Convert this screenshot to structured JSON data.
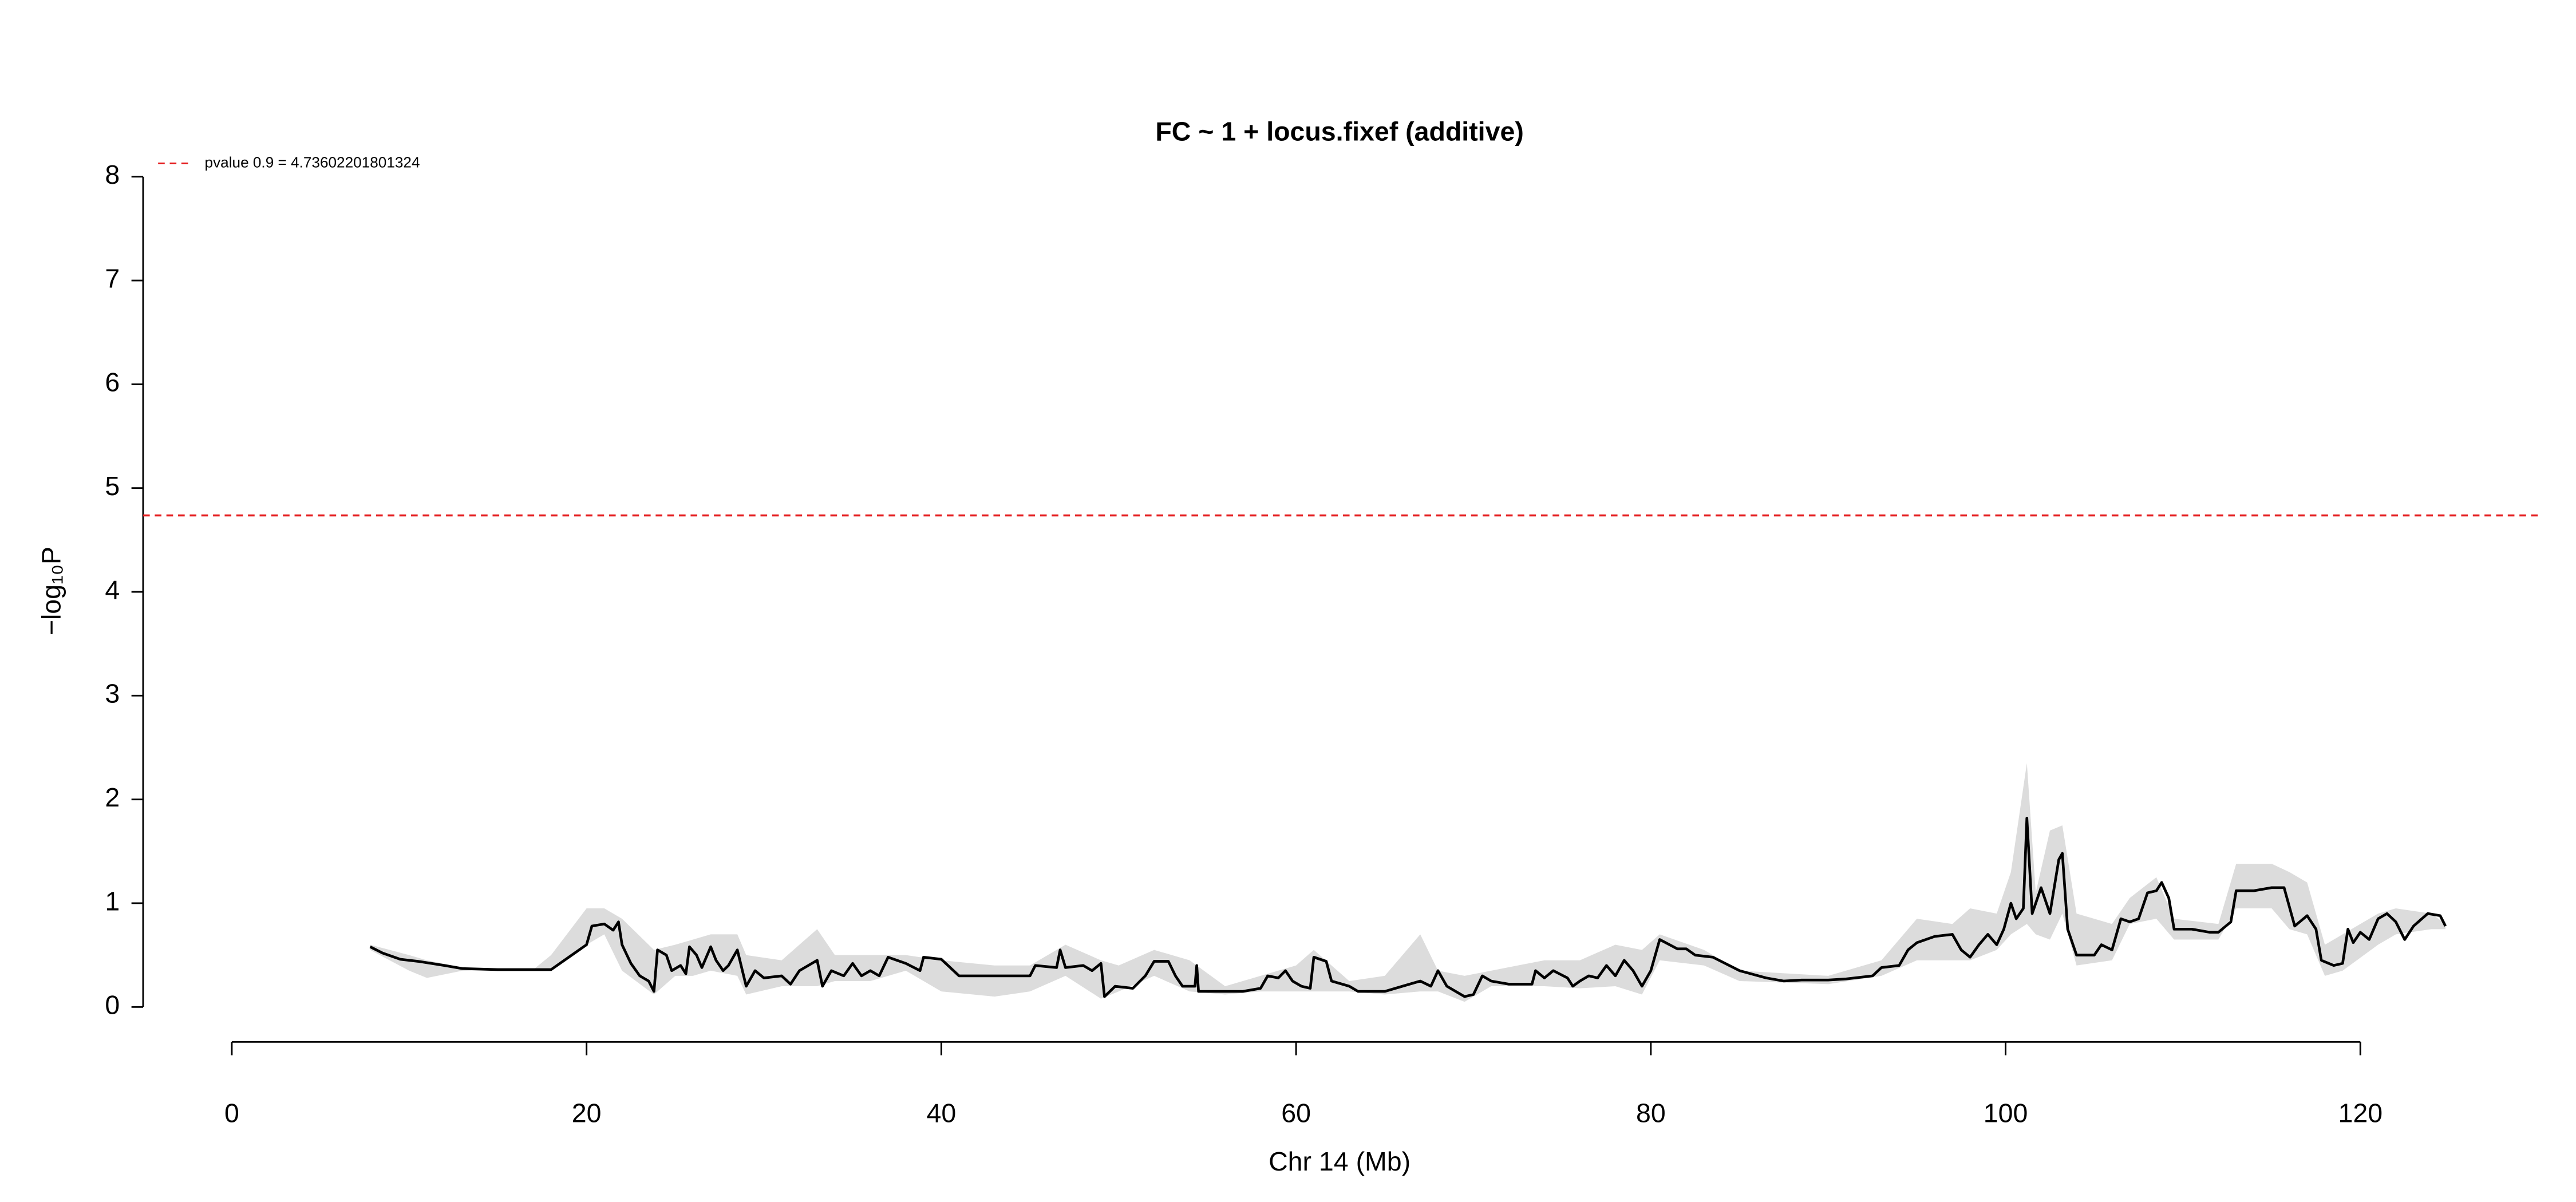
{
  "chart_data": {
    "type": "line",
    "title": "FC ~ 1 + locus.fixef (additive)",
    "xlabel": "Chr 14 (Mb)",
    "ylabel": "−log₁₀P",
    "xlim": [
      -5,
      130
    ],
    "ylim": [
      0,
      8
    ],
    "xticks": [
      0,
      20,
      40,
      60,
      80,
      100,
      120
    ],
    "yticks": [
      0,
      1,
      2,
      3,
      4,
      5,
      6,
      7,
      8
    ],
    "color": "#000000",
    "hline": {
      "value": 4.73602201801324,
      "label": "pvalue 0.9 = 4.73602201801324",
      "color": "#e41a1c"
    },
    "x": [
      7.8,
      8.5,
      9.5,
      10.5,
      12,
      13,
      15,
      18,
      20,
      20.3,
      21,
      21.5,
      21.8,
      22,
      22.5,
      23,
      23.5,
      23.8,
      24,
      24.5,
      24.8,
      25.3,
      25.6,
      25.8,
      26.2,
      26.5,
      27,
      27.3,
      27.7,
      28,
      28.5,
      29,
      29.5,
      30,
      31,
      31.5,
      32,
      33,
      33.3,
      33.8,
      34.5,
      35,
      35.5,
      36,
      36.5,
      37,
      38,
      38.8,
      39,
      40,
      41,
      45,
      45.3,
      46.5,
      46.7,
      47,
      48,
      48.5,
      49,
      49.2,
      49.8,
      50.8,
      51.5,
      52,
      52.8,
      53.2,
      53.6,
      54.3,
      54.4,
      54.5,
      56,
      57,
      58,
      58.4,
      59,
      59.4,
      59.8,
      60.3,
      60.8,
      61,
      61.7,
      62,
      63,
      63.5,
      65,
      66,
      67,
      67.6,
      68,
      68.5,
      69,
      69.5,
      70,
      70.5,
      71,
      72,
      73.3,
      73.5,
      74,
      74.5,
      75.3,
      75.6,
      76,
      76.5,
      77,
      77.5,
      78,
      78.5,
      79,
      79.5,
      80,
      80.5,
      81.5,
      82,
      82.5,
      83.5,
      85,
      86.5,
      87.5,
      88.5,
      90,
      91,
      92.5,
      93,
      94,
      94.5,
      95,
      96,
      97,
      97.5,
      98,
      98.5,
      99,
      99.5,
      99.9,
      100.3,
      100.6,
      101,
      101.2,
      101.5,
      102,
      102.5,
      103,
      103.2,
      103.5,
      104,
      105,
      105.4,
      106,
      106.5,
      107,
      107.5,
      108,
      108.5,
      108.8,
      109.2,
      109.5,
      110.5,
      111.5,
      112,
      112.7,
      113,
      114,
      115,
      115.7,
      116.3,
      117,
      117.5,
      117.8,
      118.5,
      119,
      119.3,
      119.6,
      120,
      120.5,
      121,
      121.5,
      122,
      122.5,
      123,
      123.8,
      124.5,
      124.8
    ],
    "values": [
      0.58,
      0.52,
      0.46,
      0.44,
      0.4,
      0.37,
      0.36,
      0.36,
      0.6,
      0.78,
      0.8,
      0.74,
      0.82,
      0.6,
      0.42,
      0.3,
      0.25,
      0.15,
      0.55,
      0.5,
      0.35,
      0.4,
      0.32,
      0.58,
      0.5,
      0.38,
      0.58,
      0.45,
      0.35,
      0.4,
      0.55,
      0.2,
      0.35,
      0.28,
      0.3,
      0.22,
      0.35,
      0.45,
      0.2,
      0.35,
      0.3,
      0.42,
      0.3,
      0.35,
      0.3,
      0.48,
      0.42,
      0.35,
      0.48,
      0.46,
      0.3,
      0.3,
      0.4,
      0.38,
      0.55,
      0.38,
      0.4,
      0.35,
      0.42,
      0.1,
      0.2,
      0.18,
      0.3,
      0.44,
      0.44,
      0.3,
      0.2,
      0.2,
      0.4,
      0.15,
      0.15,
      0.15,
      0.18,
      0.3,
      0.28,
      0.35,
      0.25,
      0.2,
      0.18,
      0.48,
      0.44,
      0.25,
      0.2,
      0.15,
      0.15,
      0.2,
      0.25,
      0.2,
      0.35,
      0.2,
      0.15,
      0.1,
      0.12,
      0.3,
      0.25,
      0.22,
      0.22,
      0.35,
      0.28,
      0.35,
      0.28,
      0.2,
      0.25,
      0.3,
      0.28,
      0.4,
      0.3,
      0.45,
      0.35,
      0.2,
      0.35,
      0.65,
      0.56,
      0.56,
      0.5,
      0.48,
      0.35,
      0.28,
      0.25,
      0.26,
      0.26,
      0.27,
      0.3,
      0.38,
      0.4,
      0.55,
      0.62,
      0.68,
      0.7,
      0.55,
      0.48,
      0.6,
      0.7,
      0.6,
      0.75,
      1.0,
      0.85,
      0.95,
      1.82,
      0.9,
      1.15,
      0.9,
      1.42,
      1.48,
      0.75,
      0.5,
      0.5,
      0.6,
      0.55,
      0.85,
      0.82,
      0.85,
      1.1,
      1.12,
      1.2,
      1.05,
      0.75,
      0.75,
      0.72,
      0.72,
      0.82,
      1.12,
      1.12,
      1.15,
      1.15,
      0.78,
      0.88,
      0.75,
      0.45,
      0.4,
      0.42,
      0.75,
      0.62,
      0.72,
      0.65,
      0.85,
      0.9,
      0.82,
      0.65,
      0.78,
      0.9,
      0.88,
      0.78
    ],
    "band": {
      "color": "#dcdcdc",
      "x": [
        7.8,
        10,
        11,
        13,
        17,
        18,
        20,
        21,
        22,
        23.8,
        25,
        26,
        27,
        28.5,
        29,
        31,
        33,
        34,
        36,
        38,
        40,
        43,
        45,
        47,
        49,
        50,
        52,
        54,
        56,
        58,
        60,
        61,
        63,
        65,
        67,
        68,
        69.5,
        71,
        74,
        76,
        78,
        79.5,
        80.5,
        83,
        85,
        90,
        93,
        95,
        97,
        98,
        99.5,
        100.3,
        101.2,
        101.7,
        102.5,
        103.2,
        104,
        106,
        107,
        108.5,
        109.5,
        112,
        113,
        115,
        116,
        117,
        118,
        119,
        121,
        122,
        124,
        124.8
      ],
      "lower": [
        0.55,
        0.35,
        0.28,
        0.35,
        0.36,
        0.36,
        0.6,
        0.7,
        0.35,
        0.12,
        0.3,
        0.3,
        0.35,
        0.3,
        0.12,
        0.2,
        0.2,
        0.25,
        0.25,
        0.35,
        0.15,
        0.1,
        0.15,
        0.3,
        0.08,
        0.15,
        0.3,
        0.15,
        0.12,
        0.15,
        0.15,
        0.15,
        0.15,
        0.12,
        0.15,
        0.15,
        0.05,
        0.2,
        0.2,
        0.18,
        0.2,
        0.12,
        0.45,
        0.4,
        0.25,
        0.22,
        0.3,
        0.45,
        0.45,
        0.45,
        0.55,
        0.7,
        0.8,
        0.7,
        0.65,
        0.9,
        0.4,
        0.45,
        0.8,
        0.85,
        0.65,
        0.65,
        0.95,
        0.95,
        0.75,
        0.7,
        0.3,
        0.35,
        0.6,
        0.7,
        0.75,
        0.75
      ],
      "upper": [
        0.6,
        0.5,
        0.45,
        0.38,
        0.36,
        0.5,
        0.95,
        0.95,
        0.85,
        0.55,
        0.6,
        0.65,
        0.7,
        0.7,
        0.5,
        0.45,
        0.75,
        0.5,
        0.5,
        0.5,
        0.45,
        0.4,
        0.4,
        0.6,
        0.45,
        0.4,
        0.55,
        0.45,
        0.2,
        0.3,
        0.4,
        0.55,
        0.25,
        0.3,
        0.7,
        0.35,
        0.3,
        0.35,
        0.45,
        0.45,
        0.6,
        0.55,
        0.7,
        0.55,
        0.35,
        0.3,
        0.45,
        0.85,
        0.8,
        0.95,
        0.9,
        1.3,
        2.35,
        1.1,
        1.7,
        1.75,
        0.9,
        0.8,
        1.05,
        1.25,
        0.85,
        0.8,
        1.38,
        1.38,
        1.3,
        1.2,
        0.6,
        0.7,
        0.9,
        0.95,
        0.9,
        0.8
      ]
    }
  }
}
